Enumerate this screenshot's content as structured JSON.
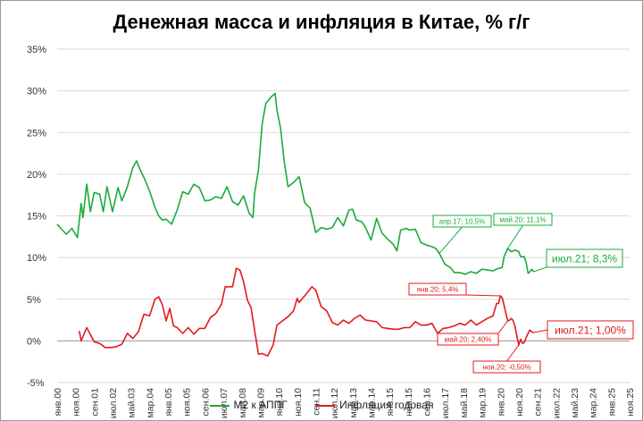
{
  "chart_data": {
    "type": "line",
    "title": "Денежная масса и инфляция в Китае, % г/г",
    "xlabel": "",
    "ylabel": "",
    "ylim": [
      -5,
      35
    ],
    "yticks": [
      -5,
      0,
      5,
      10,
      15,
      20,
      25,
      30,
      35
    ],
    "ytick_labels": [
      "-5%",
      "0%",
      "5%",
      "10%",
      "15%",
      "20%",
      "25%",
      "30%",
      "35%"
    ],
    "xlim": [
      "2000-01",
      "2025-11"
    ],
    "x_tick_labels": [
      "янв.00",
      "ноя.00",
      "сен.01",
      "июл.02",
      "май.03",
      "мар.04",
      "янв.05",
      "ноя.05",
      "сен.06",
      "июл.07",
      "май.08",
      "мар.09",
      "янв.10",
      "ноя.10",
      "сен.11",
      "июл.12",
      "май.13",
      "мар.14",
      "янв.15",
      "ноя.15",
      "сен.16",
      "июл.17",
      "май.18",
      "мар.19",
      "янв.20",
      "ноя.20",
      "сен.21",
      "июл.22",
      "май.23",
      "мар.24",
      "янв.25",
      "ноя.25"
    ],
    "grid": "horizontal",
    "legend_position": "bottom",
    "series": [
      {
        "name": "М2 к АППГ",
        "color": "#1aab3c",
        "points": [
          [
            "2000-01",
            14.0
          ],
          [
            "2000-03",
            13.5
          ],
          [
            "2000-06",
            12.8
          ],
          [
            "2000-09",
            13.5
          ],
          [
            "2000-12",
            12.4
          ],
          [
            "2001-02",
            16.5
          ],
          [
            "2001-03",
            14.8
          ],
          [
            "2001-05",
            18.8
          ],
          [
            "2001-07",
            15.5
          ],
          [
            "2001-09",
            17.8
          ],
          [
            "2001-12",
            17.6
          ],
          [
            "2002-02",
            15.5
          ],
          [
            "2002-04",
            18.5
          ],
          [
            "2002-07",
            15.5
          ],
          [
            "2002-10",
            18.4
          ],
          [
            "2002-12",
            16.8
          ],
          [
            "2003-03",
            18.5
          ],
          [
            "2003-06",
            20.8
          ],
          [
            "2003-08",
            21.6
          ],
          [
            "2003-10",
            20.5
          ],
          [
            "2003-12",
            19.6
          ],
          [
            "2004-03",
            18.0
          ],
          [
            "2004-06",
            16.0
          ],
          [
            "2004-08",
            15.0
          ],
          [
            "2004-10",
            14.5
          ],
          [
            "2004-12",
            14.6
          ],
          [
            "2005-03",
            14.0
          ],
          [
            "2005-06",
            15.7
          ],
          [
            "2005-09",
            17.9
          ],
          [
            "2005-12",
            17.6
          ],
          [
            "2006-03",
            18.8
          ],
          [
            "2006-06",
            18.4
          ],
          [
            "2006-09",
            16.8
          ],
          [
            "2006-12",
            16.9
          ],
          [
            "2007-03",
            17.3
          ],
          [
            "2007-06",
            17.1
          ],
          [
            "2007-09",
            18.5
          ],
          [
            "2007-12",
            16.7
          ],
          [
            "2008-03",
            16.3
          ],
          [
            "2008-06",
            17.4
          ],
          [
            "2008-09",
            15.3
          ],
          [
            "2008-11",
            14.8
          ],
          [
            "2008-12",
            17.8
          ],
          [
            "2009-02",
            20.5
          ],
          [
            "2009-04",
            26.0
          ],
          [
            "2009-06",
            28.5
          ],
          [
            "2009-09",
            29.3
          ],
          [
            "2009-11",
            29.7
          ],
          [
            "2009-12",
            27.7
          ],
          [
            "2010-02",
            25.5
          ],
          [
            "2010-04",
            21.5
          ],
          [
            "2010-06",
            18.5
          ],
          [
            "2010-09",
            19.0
          ],
          [
            "2010-12",
            19.7
          ],
          [
            "2011-03",
            16.6
          ],
          [
            "2011-06",
            15.9
          ],
          [
            "2011-09",
            13.0
          ],
          [
            "2011-12",
            13.6
          ],
          [
            "2012-03",
            13.4
          ],
          [
            "2012-06",
            13.6
          ],
          [
            "2012-09",
            14.8
          ],
          [
            "2012-12",
            13.8
          ],
          [
            "2013-03",
            15.7
          ],
          [
            "2013-05",
            15.8
          ],
          [
            "2013-07",
            14.5
          ],
          [
            "2013-10",
            14.3
          ],
          [
            "2013-12",
            13.6
          ],
          [
            "2014-03",
            12.1
          ],
          [
            "2014-06",
            14.7
          ],
          [
            "2014-09",
            12.9
          ],
          [
            "2014-12",
            12.2
          ],
          [
            "2015-03",
            11.6
          ],
          [
            "2015-05",
            10.8
          ],
          [
            "2015-07",
            13.3
          ],
          [
            "2015-10",
            13.5
          ],
          [
            "2015-12",
            13.3
          ],
          [
            "2016-03",
            13.4
          ],
          [
            "2016-06",
            11.8
          ],
          [
            "2016-09",
            11.5
          ],
          [
            "2016-12",
            11.3
          ],
          [
            "2017-02",
            11.1
          ],
          [
            "2017-04",
            10.5
          ],
          [
            "2017-07",
            9.2
          ],
          [
            "2017-10",
            8.8
          ],
          [
            "2017-12",
            8.2
          ],
          [
            "2018-03",
            8.2
          ],
          [
            "2018-06",
            8.0
          ],
          [
            "2018-09",
            8.3
          ],
          [
            "2018-12",
            8.1
          ],
          [
            "2019-03",
            8.6
          ],
          [
            "2019-06",
            8.5
          ],
          [
            "2019-09",
            8.4
          ],
          [
            "2019-12",
            8.7
          ],
          [
            "2020-02",
            8.8
          ],
          [
            "2020-03",
            10.1
          ],
          [
            "2020-05",
            11.1
          ],
          [
            "2020-07",
            10.7
          ],
          [
            "2020-09",
            10.9
          ],
          [
            "2020-11",
            10.7
          ],
          [
            "2020-12",
            10.1
          ],
          [
            "2021-02",
            10.1
          ],
          [
            "2021-03",
            9.4
          ],
          [
            "2021-04",
            8.1
          ],
          [
            "2021-05",
            8.3
          ],
          [
            "2021-06",
            8.6
          ],
          [
            "2021-07",
            8.3
          ]
        ]
      },
      {
        "name": "Инфляция годовая",
        "color": "#e41a1c",
        "points": [
          [
            "2001-01",
            1.2
          ],
          [
            "2001-02",
            0.0
          ],
          [
            "2001-05",
            1.6
          ],
          [
            "2001-09",
            -0.1
          ],
          [
            "2001-12",
            -0.3
          ],
          [
            "2002-03",
            -0.8
          ],
          [
            "2002-06",
            -0.8
          ],
          [
            "2002-09",
            -0.7
          ],
          [
            "2002-12",
            -0.4
          ],
          [
            "2003-03",
            0.9
          ],
          [
            "2003-06",
            0.3
          ],
          [
            "2003-09",
            1.1
          ],
          [
            "2003-12",
            3.2
          ],
          [
            "2004-03",
            3.0
          ],
          [
            "2004-06",
            5.0
          ],
          [
            "2004-08",
            5.3
          ],
          [
            "2004-10",
            4.3
          ],
          [
            "2004-12",
            2.4
          ],
          [
            "2005-02",
            3.9
          ],
          [
            "2005-04",
            1.8
          ],
          [
            "2005-06",
            1.6
          ],
          [
            "2005-09",
            0.9
          ],
          [
            "2005-12",
            1.6
          ],
          [
            "2006-03",
            0.8
          ],
          [
            "2006-06",
            1.5
          ],
          [
            "2006-09",
            1.5
          ],
          [
            "2006-12",
            2.8
          ],
          [
            "2007-03",
            3.3
          ],
          [
            "2007-06",
            4.4
          ],
          [
            "2007-08",
            6.5
          ],
          [
            "2007-10",
            6.5
          ],
          [
            "2007-12",
            6.5
          ],
          [
            "2008-02",
            8.7
          ],
          [
            "2008-04",
            8.5
          ],
          [
            "2008-06",
            7.1
          ],
          [
            "2008-08",
            4.9
          ],
          [
            "2008-10",
            4.0
          ],
          [
            "2008-12",
            1.2
          ],
          [
            "2009-02",
            -1.6
          ],
          [
            "2009-04",
            -1.5
          ],
          [
            "2009-07",
            -1.8
          ],
          [
            "2009-10",
            -0.5
          ],
          [
            "2009-12",
            1.9
          ],
          [
            "2010-03",
            2.4
          ],
          [
            "2010-06",
            2.9
          ],
          [
            "2010-09",
            3.6
          ],
          [
            "2010-11",
            5.1
          ],
          [
            "2010-12",
            4.6
          ],
          [
            "2011-03",
            5.4
          ],
          [
            "2011-07",
            6.5
          ],
          [
            "2011-09",
            6.1
          ],
          [
            "2011-12",
            4.1
          ],
          [
            "2012-03",
            3.6
          ],
          [
            "2012-06",
            2.2
          ],
          [
            "2012-09",
            1.9
          ],
          [
            "2012-12",
            2.5
          ],
          [
            "2013-03",
            2.1
          ],
          [
            "2013-06",
            2.7
          ],
          [
            "2013-09",
            3.1
          ],
          [
            "2013-12",
            2.5
          ],
          [
            "2014-03",
            2.4
          ],
          [
            "2014-06",
            2.3
          ],
          [
            "2014-09",
            1.6
          ],
          [
            "2014-12",
            1.5
          ],
          [
            "2015-03",
            1.4
          ],
          [
            "2015-06",
            1.4
          ],
          [
            "2015-09",
            1.6
          ],
          [
            "2015-12",
            1.6
          ],
          [
            "2016-03",
            2.3
          ],
          [
            "2016-06",
            1.9
          ],
          [
            "2016-09",
            1.9
          ],
          [
            "2016-12",
            2.1
          ],
          [
            "2017-03",
            0.9
          ],
          [
            "2017-06",
            1.5
          ],
          [
            "2017-09",
            1.6
          ],
          [
            "2017-12",
            1.8
          ],
          [
            "2018-03",
            2.1
          ],
          [
            "2018-06",
            1.9
          ],
          [
            "2018-09",
            2.5
          ],
          [
            "2018-12",
            1.9
          ],
          [
            "2019-03",
            2.3
          ],
          [
            "2019-06",
            2.7
          ],
          [
            "2019-09",
            3.0
          ],
          [
            "2019-11",
            4.5
          ],
          [
            "2019-12",
            4.5
          ],
          [
            "2020-01",
            5.4
          ],
          [
            "2020-02",
            5.2
          ],
          [
            "2020-03",
            4.3
          ],
          [
            "2020-04",
            3.3
          ],
          [
            "2020-05",
            2.4
          ],
          [
            "2020-06",
            2.5
          ],
          [
            "2020-07",
            2.7
          ],
          [
            "2020-08",
            2.4
          ],
          [
            "2020-09",
            1.7
          ],
          [
            "2020-10",
            0.5
          ],
          [
            "2020-11",
            -0.5
          ],
          [
            "2020-12",
            0.2
          ],
          [
            "2021-01",
            -0.3
          ],
          [
            "2021-02",
            -0.2
          ],
          [
            "2021-03",
            0.4
          ],
          [
            "2021-04",
            0.9
          ],
          [
            "2021-05",
            1.3
          ],
          [
            "2021-06",
            1.1
          ],
          [
            "2021-07",
            1.0
          ]
        ]
      }
    ],
    "annotations": [
      {
        "text": "апр.17; 10,5%",
        "series": 0,
        "x": "2017-04",
        "y": 10.5,
        "size": "small"
      },
      {
        "text": "май.20; 11,1%",
        "series": 0,
        "x": "2020-05",
        "y": 11.1,
        "size": "small"
      },
      {
        "text": "июл.21; 8,3%",
        "series": 0,
        "x": "2021-07",
        "y": 8.3,
        "size": "large"
      },
      {
        "text": "янв.20; 5,4%",
        "series": 1,
        "x": "2020-01",
        "y": 5.4,
        "size": "small"
      },
      {
        "text": "май.20; 2,40%",
        "series": 1,
        "x": "2020-05",
        "y": 2.4,
        "size": "small"
      },
      {
        "text": "ноя.20; -0,50%",
        "series": 1,
        "x": "2020-11",
        "y": -0.5,
        "size": "small"
      },
      {
        "text": "июл.21; 1,00%",
        "series": 1,
        "x": "2021-07",
        "y": 1.0,
        "size": "large"
      }
    ]
  }
}
